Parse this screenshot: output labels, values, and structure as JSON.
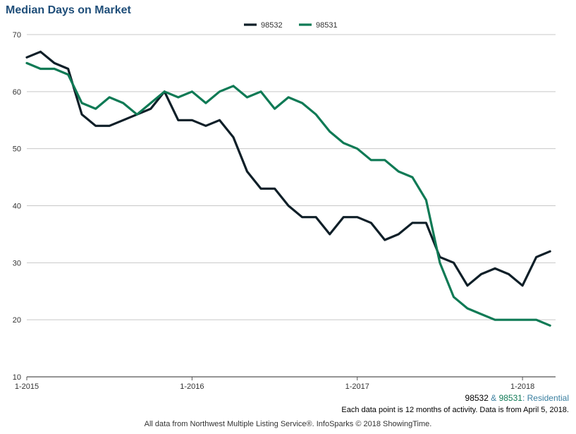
{
  "chart_data": {
    "type": "line",
    "title": "Median Days on Market",
    "xlabel": "",
    "ylabel": "",
    "ylim": [
      10,
      70
    ],
    "yticks": [
      10,
      20,
      30,
      40,
      50,
      60,
      70
    ],
    "xlim": [
      0,
      38.4
    ],
    "xticks": [
      {
        "x": 0,
        "label": "1-2015"
      },
      {
        "x": 12,
        "label": "1-2016"
      },
      {
        "x": 24,
        "label": "1-2017"
      },
      {
        "x": 36,
        "label": "1-2018"
      }
    ],
    "grid": true,
    "legend_position": "top-center",
    "series": [
      {
        "name": "98532",
        "color": "#0f1f28",
        "values": [
          66,
          67,
          65,
          64,
          56,
          54,
          54,
          55,
          56,
          57,
          60,
          55,
          55,
          54,
          55,
          52,
          46,
          43,
          43,
          40,
          38,
          38,
          35,
          38,
          38,
          37,
          34,
          35,
          37,
          37,
          31,
          30,
          26,
          28,
          29,
          28,
          26,
          31,
          32
        ]
      },
      {
        "name": "98531",
        "color": "#0f7a55",
        "values": [
          65,
          64,
          64,
          63,
          58,
          57,
          59,
          58,
          56,
          58,
          60,
          59,
          60,
          58,
          60,
          61,
          59,
          60,
          57,
          59,
          58,
          56,
          53,
          51,
          50,
          48,
          48,
          46,
          45,
          41,
          30,
          24,
          22,
          21,
          20,
          20,
          20,
          20,
          19
        ]
      }
    ]
  },
  "caption": {
    "first": "98532",
    "amp": " & ",
    "second": "98531",
    "suffix": ": Residential"
  },
  "notes": {
    "activity": "Each data point is 12 months of activity. Data is from April 5, 2018.",
    "source": "All data from Northwest Multiple Listing Service®. InfoSparks © 2018 ShowingTime."
  },
  "colors": {
    "title": "#1f4e79",
    "grid": "#c8c8c8",
    "axis": "#555555",
    "caption_second": "#0f7a55",
    "caption_suffix": "#3a7fa0"
  }
}
